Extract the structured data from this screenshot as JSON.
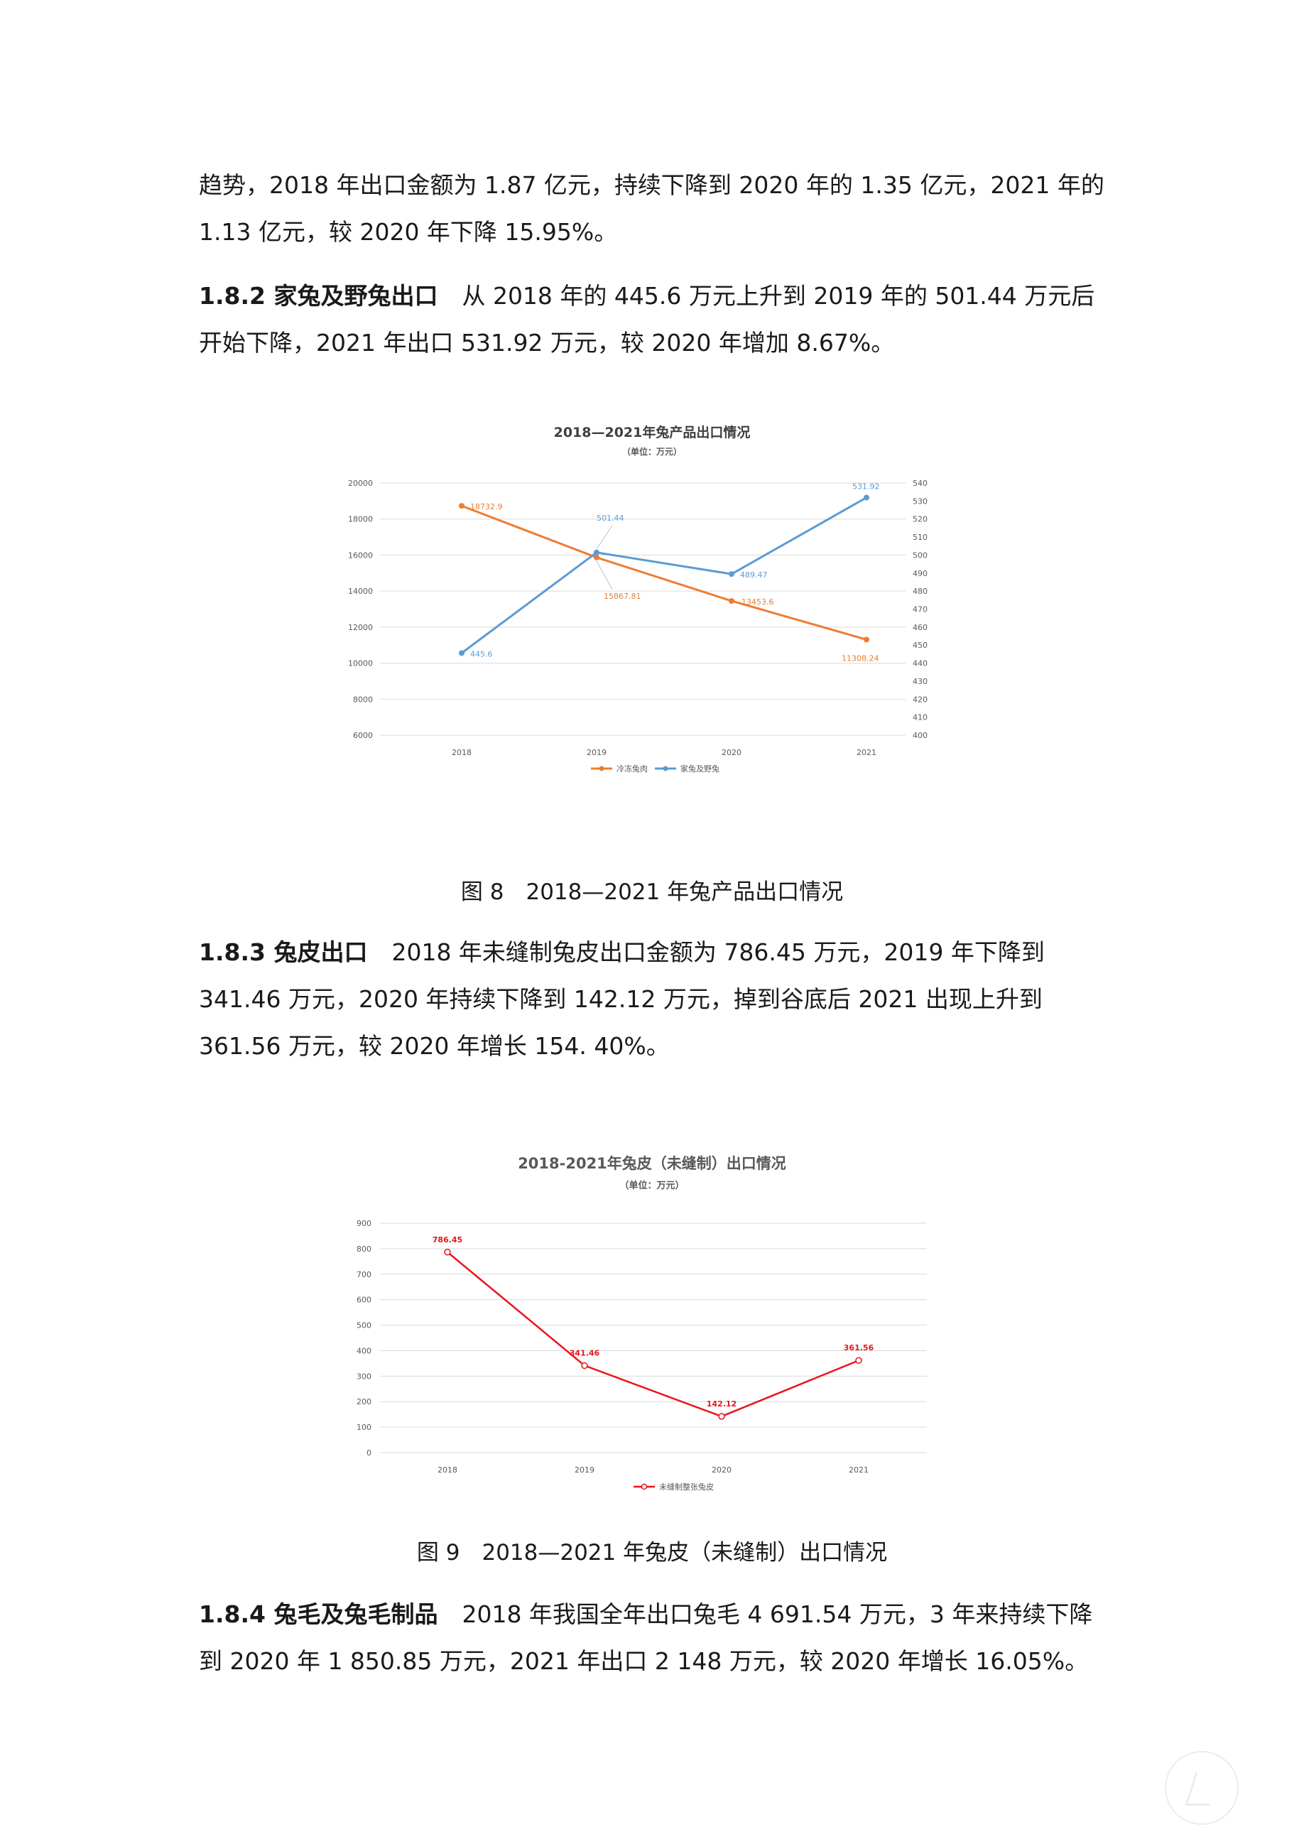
{
  "paragraphs": {
    "p1": "趋势，2018 年出口金额为 1.87 亿元，持续下降到 2020 年的 1.35 亿元，2021 年的 1.13 亿元，较 2020 年下降 15.95%。",
    "s182_heading": "1.8.2  家兔及野兔出口",
    "s182_body": "从 2018 年的 445.6 万元上升到 2019 年的 501.44 万元后开始下降，2021 年出口 531.92 万元，较 2020 年增加 8.67%。",
    "s183_heading": "1.8.3  兔皮出口",
    "s183_body": "2018 年未缝制兔皮出口金额为 786.45 万元，2019 年下降到 341.46 万元，2020 年持续下降到 142.12 万元，掉到谷底后 2021 出现上升到 361.56 万元，较 2020 年增长 154. 40%。",
    "s184_heading": "1.8.4  兔毛及兔毛制品",
    "s184_body": "2018 年我国全年出口兔毛 4 691.54 万元，3 年来持续下降到 2020 年 1 850.85 万元，2021 年出口 2 148 万元，较 2020 年增长 16.05%。"
  },
  "captions": {
    "fig8": "图 8　2018—2021 年兔产品出口情况",
    "fig9": "图 9　2018—2021 年兔皮（未缝制）出口情况"
  },
  "colors": {
    "orange": "#ed7d31",
    "blue": "#5b9bd5",
    "red": "#e8151b"
  },
  "chart_data": [
    {
      "type": "line",
      "title": "2018—2021年兔产品出口情况",
      "subtitle": "（单位：万元）",
      "categories": [
        "2018",
        "2019",
        "2020",
        "2021"
      ],
      "y_left_ticks": [
        "20000",
        "18000",
        "16000",
        "14000",
        "12000",
        "10000",
        "8000",
        "6000"
      ],
      "y_right_ticks": [
        "540",
        "530",
        "520",
        "510",
        "500",
        "490",
        "480",
        "470",
        "460",
        "450",
        "440",
        "430",
        "420",
        "410",
        "400"
      ],
      "ylim_left": [
        6000,
        20000
      ],
      "ylim_right": [
        400,
        540
      ],
      "series": [
        {
          "name": "冷冻兔肉",
          "axis": "left",
          "values": [
            18732.9,
            15867.81,
            13453.6,
            11308.24
          ],
          "labels": [
            "18732.9",
            "15867.81",
            "13453.6",
            "11308.24"
          ]
        },
        {
          "name": "家兔及野兔",
          "axis": "right",
          "values": [
            445.6,
            501.44,
            489.47,
            531.92
          ],
          "labels": [
            "445.6",
            "501.44",
            "489.47",
            "531.92"
          ]
        }
      ],
      "grid": true,
      "legend": "bottom"
    },
    {
      "type": "line",
      "title": "2018-2021年兔皮（未缝制）出口情况",
      "subtitle": "（单位：万元）",
      "categories": [
        "2018",
        "2019",
        "2020",
        "2021"
      ],
      "y_ticks": [
        "900",
        "800",
        "700",
        "600",
        "500",
        "400",
        "300",
        "200",
        "100",
        "0"
      ],
      "ylim": [
        0,
        900
      ],
      "series": [
        {
          "name": "未缝制整张兔皮",
          "values": [
            786.45,
            341.46,
            142.12,
            361.56
          ],
          "labels": [
            "786.45",
            "341.46",
            "142.12",
            "361.56"
          ]
        }
      ],
      "grid": true,
      "legend": "bottom"
    }
  ]
}
